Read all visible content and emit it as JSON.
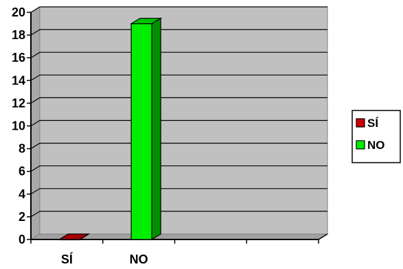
{
  "chart_data": {
    "type": "bar",
    "title": "",
    "xlabel": "",
    "ylabel": "",
    "categories": [
      "SÍ",
      "NO"
    ],
    "series": [
      {
        "name": "SÍ",
        "values": [
          0,
          null
        ],
        "color": "#cc0000"
      },
      {
        "name": "NO",
        "values": [
          null,
          19
        ],
        "color": "#00ee00"
      }
    ],
    "ylim": [
      0,
      20
    ],
    "yticks": [
      "0",
      "2",
      "4",
      "6",
      "8",
      "10",
      "12",
      "14",
      "16",
      "18",
      "20"
    ],
    "grid": true,
    "plot_background": "#c0c0c0",
    "legend_position": "right",
    "style": "3d-column"
  }
}
